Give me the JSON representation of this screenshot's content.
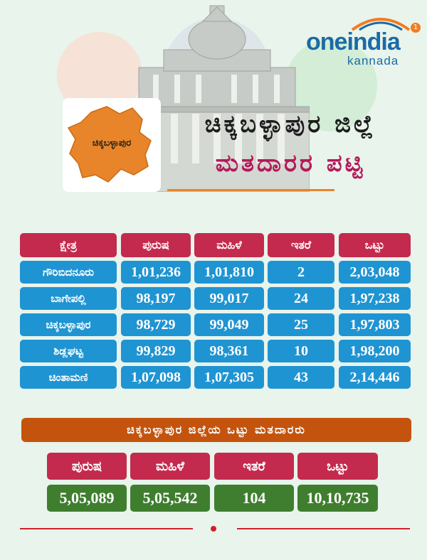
{
  "brand": {
    "name": "oneindia",
    "sub": "kannada",
    "badge": "1"
  },
  "map_label": "ಚಿಕ್ಕಬಳ್ಳಾಪುರ",
  "title_line1": "ಚಿಕ್ಕಬಳ್ಳಾಪುರ ಜಿಲ್ಲೆ",
  "title_line2": "ಮತದಾರರ ಪಟ್ಟಿ",
  "table": {
    "headers": [
      "ಕ್ಷೇತ್ರ",
      "ಪುರುಷ",
      "ಮಹಿಳೆ",
      "ಇತರೆ",
      "ಒಟ್ಟು"
    ],
    "rows": [
      [
        "ಗೌರಿಬಿದನೂರು",
        "1,01,236",
        "1,01,810",
        "2",
        "2,03,048"
      ],
      [
        "ಬಾಗೇಪಲ್ಲಿ",
        "98,197",
        "99,017",
        "24",
        "1,97,238"
      ],
      [
        "ಚಿಕ್ಕಬಳ್ಳಾಪುರ",
        "98,729",
        "99,049",
        "25",
        "1,97,803"
      ],
      [
        "ಶಿಡ್ಲಘಟ್ಟ",
        "99,829",
        "98,361",
        "10",
        "1,98,200"
      ],
      [
        "ಚಿಂತಾಮಣಿ",
        "1,07,098",
        "1,07,305",
        "43",
        "2,14,446"
      ]
    ]
  },
  "summary": {
    "banner": "ಚಿಕ್ಕಬಳ್ಳಾಪುರ ಜಿಲ್ಲೆಯ ಒಟ್ಟು ಮತದಾರರು",
    "headers": [
      "ಪುರುಷ",
      "ಮಹಿಳೆ",
      "ಇತರೆ",
      "ಒಟ್ಟು"
    ],
    "values": [
      "5,05,089",
      "5,05,542",
      "104",
      "10,10,735"
    ]
  },
  "colors": {
    "header_red": "#c42a4d",
    "row_blue": "#1f94d2",
    "banner_orange": "#c4540d",
    "total_green": "#3f7e2f",
    "map_orange": "#e8852a"
  }
}
